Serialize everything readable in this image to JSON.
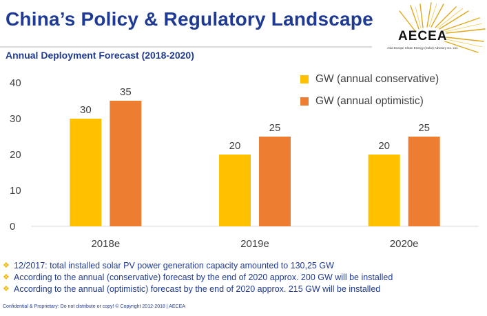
{
  "header": {
    "title": "China’s Policy & Regulatory Landscape",
    "subtitle": "Annual Deployment Forecast (2018-2020)"
  },
  "logo": {
    "name": "AECEA",
    "tagline": "Asia Europe Clean Energy (Solar) Advisory Co. Ltd."
  },
  "chart_data": {
    "type": "bar",
    "title": "Annual Deployment Forecast (2018-2020)",
    "categories": [
      "2018e",
      "2019e",
      "2020e"
    ],
    "series": [
      {
        "name": "GW (annual conservative)",
        "values": [
          30,
          20,
          20
        ],
        "color": "#ffc000"
      },
      {
        "name": "GW (annual optimistic)",
        "values": [
          35,
          25,
          25
        ],
        "color": "#ed7d31"
      }
    ],
    "ylim": [
      0,
      40
    ],
    "yticks": [
      0,
      10,
      20,
      30,
      40
    ],
    "data_labels": true,
    "grid": false,
    "legend": "top-right"
  },
  "notes": [
    "12/2017: total installed solar PV power generation capacity amounted to 130,25 GW",
    "According to the annual (conservative) forecast by the end of 2020 approx. 200 GW will be installed",
    "According to the annual (optimistic) forecast by the end of 2020 approx. 215 GW will be installed"
  ],
  "footer": "Confidential & Proprietary: Do not distribute or copy! © Copyright 2012-2018 | AECEA",
  "colors": {
    "title": "#1f3a93",
    "bullet": "#f0b400",
    "axis_text": "#404040"
  }
}
